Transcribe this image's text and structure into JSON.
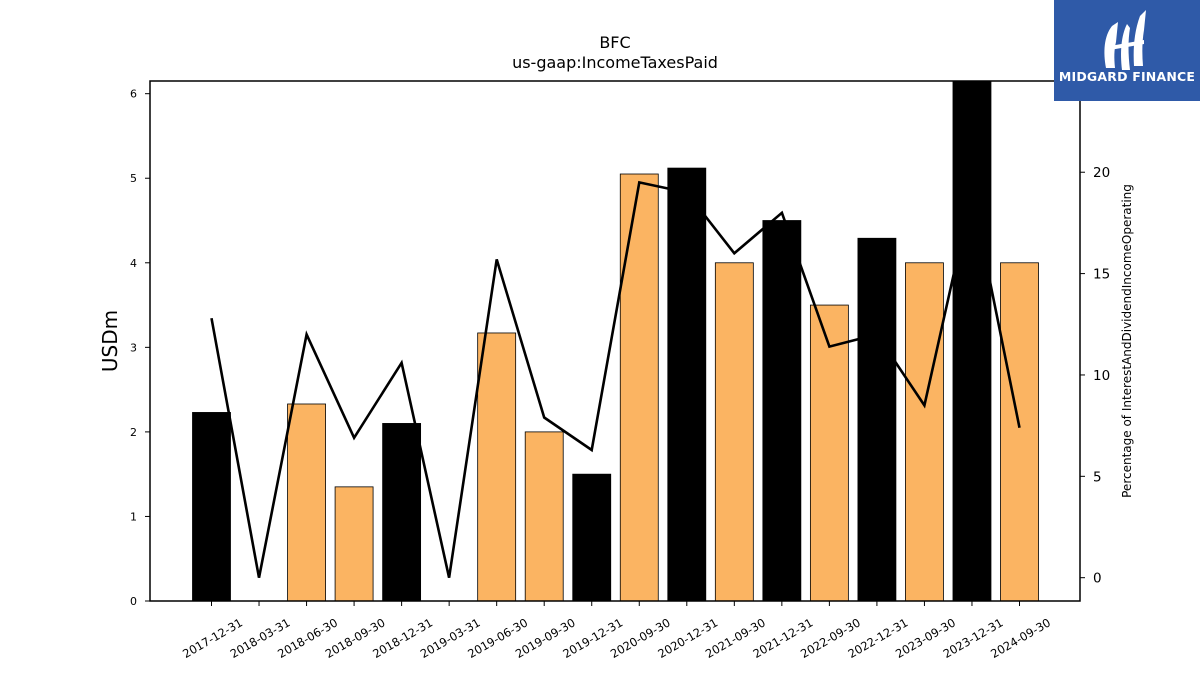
{
  "brand": {
    "name": "MIDGARD FINANCE",
    "color": "#2f5aa8"
  },
  "chart_data": {
    "type": "bar",
    "title": "BFC",
    "subtitle": "us-gaap:IncomeTaxesPaid",
    "ylabel": "USDm",
    "y2label": "Percentage of InterestAndDividendIncomeOperating",
    "ylim": [
      0,
      6.15
    ],
    "y2lim": [
      -1.15,
      24.5
    ],
    "yticks": [
      0,
      1,
      2,
      3,
      4,
      5,
      6
    ],
    "y2ticks": [
      0,
      5,
      10,
      15,
      20
    ],
    "grid": false,
    "categories": [
      "2017-12-31",
      "2018-03-31",
      "2018-06-30",
      "2018-09-30",
      "2018-12-31",
      "2019-03-31",
      "2019-06-30",
      "2019-09-30",
      "2019-12-31",
      "2020-09-30",
      "2020-12-31",
      "2021-09-30",
      "2021-12-31",
      "2022-09-30",
      "2022-12-31",
      "2023-09-30",
      "2023-12-31",
      "2024-09-30"
    ],
    "series": [
      {
        "kind": "bar",
        "values": [
          2.23,
          0,
          2.33,
          1.35,
          2.1,
          0,
          3.17,
          2.0,
          1.5,
          5.05,
          5.12,
          4.0,
          4.5,
          3.5,
          4.29,
          4.0,
          6.15,
          4.0
        ],
        "colors": [
          "#000000",
          "#000000",
          "#fbb462",
          "#fbb462",
          "#000000",
          "#000000",
          "#fbb462",
          "#fbb462",
          "#000000",
          "#fbb462",
          "#000000",
          "#fbb462",
          "#000000",
          "#fbb462",
          "#000000",
          "#fbb462",
          "#000000",
          "#fbb462"
        ]
      },
      {
        "kind": "line",
        "axis": "right",
        "color": "#000000",
        "values": [
          12.8,
          0.0,
          12.0,
          6.9,
          10.6,
          0.0,
          15.7,
          7.9,
          6.3,
          19.5,
          19.0,
          16.0,
          18.0,
          11.4,
          12.0,
          8.5,
          19.0,
          7.4
        ]
      }
    ]
  }
}
